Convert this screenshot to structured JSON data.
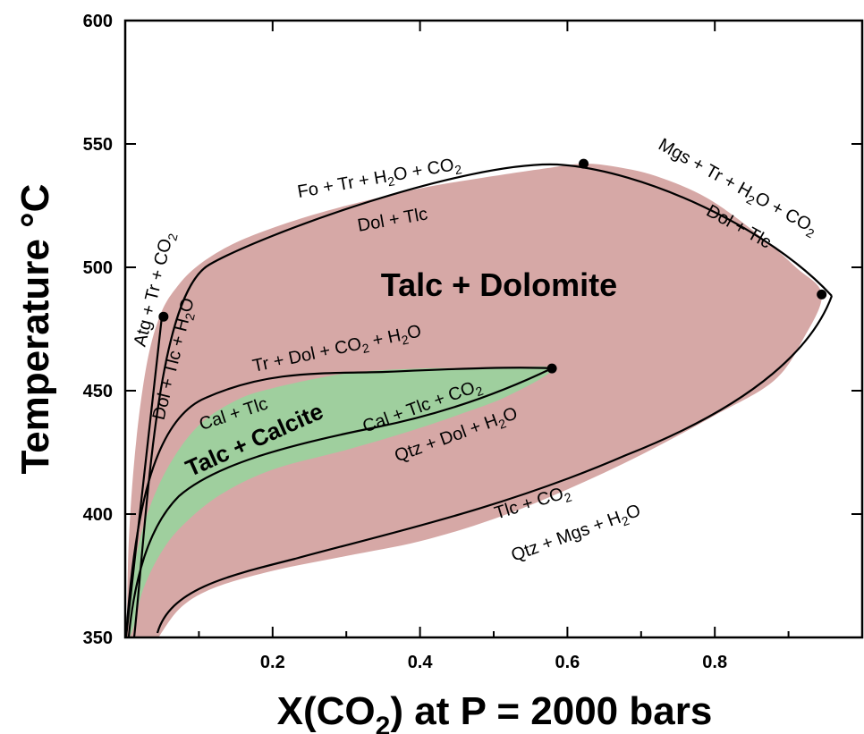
{
  "chart_data": {
    "type": "area",
    "title": "",
    "xlabel_main": "X(CO",
    "xlabel_sub": "2",
    "xlabel_rest": ")  at   P = 2000 bars",
    "ylabel": "Temperature  °C",
    "xlim": [
      0,
      1
    ],
    "ylim": [
      350,
      600
    ],
    "x_ticks": [
      0.2,
      0.4,
      0.6,
      0.8
    ],
    "y_ticks": [
      350,
      400,
      450,
      500,
      550,
      600
    ],
    "colors": {
      "talc_dolomite": "#d6a8a6",
      "talc_calcite": "#9fcf9e",
      "line": "#000000"
    },
    "fields": [
      {
        "name": "Talc + Dolomite",
        "boundary": [
          [
            0.002,
            350
          ],
          [
            0.005,
            390
          ],
          [
            0.015,
            430
          ],
          [
            0.03,
            462
          ],
          [
            0.048,
            481
          ],
          [
            0.07,
            492
          ],
          [
            0.1,
            501
          ],
          [
            0.15,
            510
          ],
          [
            0.22,
            518
          ],
          [
            0.3,
            525
          ],
          [
            0.4,
            532
          ],
          [
            0.5,
            537
          ],
          [
            0.58,
            540.5
          ],
          [
            0.622,
            542
          ],
          [
            0.66,
            541
          ],
          [
            0.72,
            537
          ],
          [
            0.79,
            528
          ],
          [
            0.86,
            513
          ],
          [
            0.91,
            500
          ],
          [
            0.945,
            489
          ],
          [
            0.92,
            471
          ],
          [
            0.88,
            454
          ],
          [
            0.8,
            440
          ],
          [
            0.7,
            424
          ],
          [
            0.6,
            410
          ],
          [
            0.5,
            398
          ],
          [
            0.4,
            389
          ],
          [
            0.3,
            383
          ],
          [
            0.2,
            377
          ],
          [
            0.12,
            370
          ],
          [
            0.075,
            362
          ],
          [
            0.045,
            350
          ]
        ]
      },
      {
        "name": "Talc + Calcite",
        "boundary": [
          [
            0.004,
            350
          ],
          [
            0.012,
            378
          ],
          [
            0.03,
            400
          ],
          [
            0.06,
            420
          ],
          [
            0.1,
            436
          ],
          [
            0.15,
            446
          ],
          [
            0.2,
            451
          ],
          [
            0.3,
            457
          ],
          [
            0.4,
            459
          ],
          [
            0.5,
            459
          ],
          [
            0.579,
            459
          ],
          [
            0.52,
            448
          ],
          [
            0.45,
            440
          ],
          [
            0.38,
            433
          ],
          [
            0.3,
            426
          ],
          [
            0.2,
            418
          ],
          [
            0.13,
            408
          ],
          [
            0.08,
            396
          ],
          [
            0.05,
            385
          ],
          [
            0.025,
            370
          ],
          [
            0.012,
            355
          ],
          [
            0.006,
            350
          ]
        ]
      }
    ],
    "invariant_points": [
      [
        0.052,
        480
      ],
      [
        0.579,
        459
      ],
      [
        0.622,
        542
      ],
      [
        0.945,
        489
      ]
    ],
    "field_labels": [
      {
        "text": "Talc + Dolomite",
        "x": 0.5,
        "y": 497
      },
      {
        "text": "Talc + Calcite",
        "x": 0.2,
        "y": 430
      }
    ],
    "reaction_labels": [
      {
        "upper_parts": [
          "Fo + Tr + H",
          "2",
          "O + CO",
          "2"
        ],
        "lower_parts": [
          "Dol + Tlc"
        ]
      },
      {
        "upper_parts": [
          "Mgs + Tr + H",
          "2",
          "O + CO",
          "2"
        ],
        "lower_parts": [
          "Dol + Tlc"
        ]
      },
      {
        "upper_parts": [
          "Atg + Tr + CO",
          "2"
        ],
        "lower_parts": [
          "Dol + Tlc + H",
          "2",
          "O"
        ]
      },
      {
        "upper_parts": [
          "Tr + Dol + CO",
          "2",
          " + H",
          "2",
          "O"
        ],
        "lower_parts": [
          "Cal + Tlc"
        ]
      },
      {
        "upper_parts": [
          "Cal + Tlc + CO",
          "2"
        ],
        "lower_parts": [
          "Qtz + Dol + H",
          "2",
          "O"
        ]
      },
      {
        "upper_parts": [
          "Tlc + CO",
          "2"
        ],
        "lower_parts": [
          "Qtz + Mgs + H",
          "2",
          "O"
        ]
      }
    ]
  }
}
